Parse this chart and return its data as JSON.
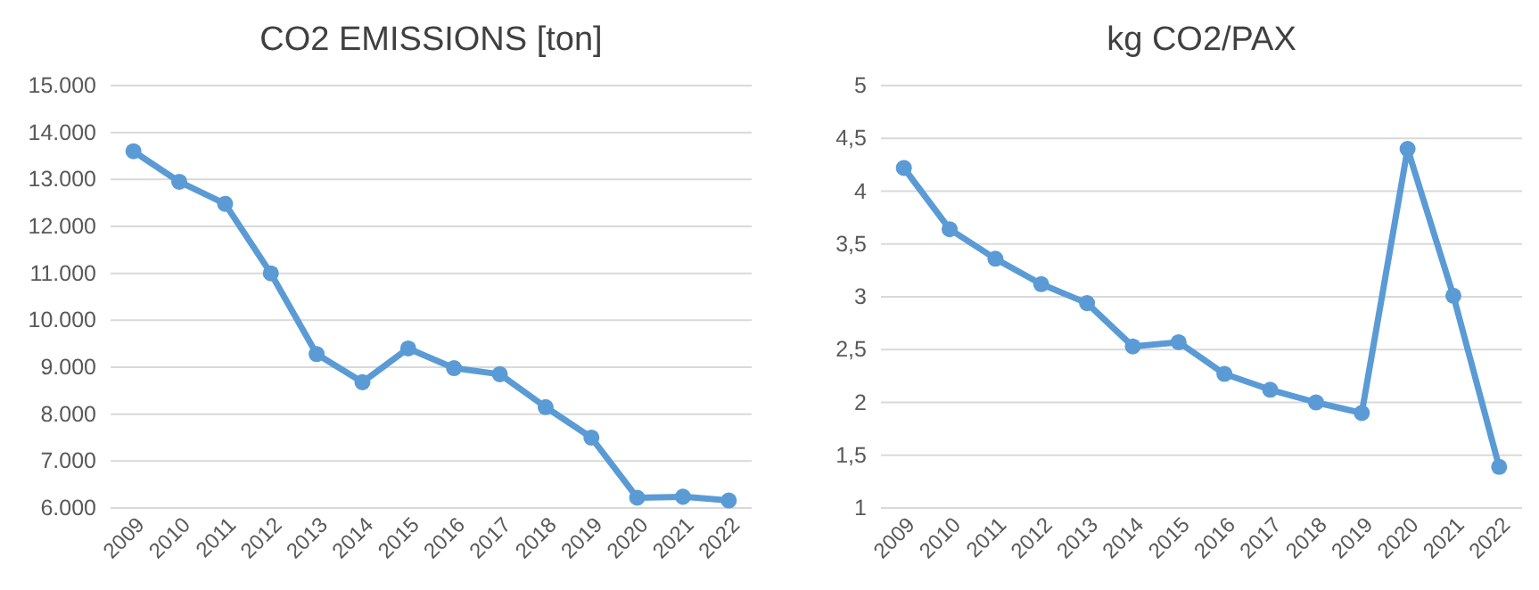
{
  "chart_data": [
    {
      "type": "line",
      "title": "CO2 EMISSIONS [ton]",
      "categories": [
        "2009",
        "2010",
        "2011",
        "2012",
        "2013",
        "2014",
        "2015",
        "2016",
        "2017",
        "2018",
        "2019",
        "2020",
        "2021",
        "2022"
      ],
      "series": [
        {
          "color": "#5b9bd5",
          "values": [
            13600,
            12950,
            12480,
            11000,
            9280,
            8680,
            9400,
            8980,
            8850,
            8150,
            7500,
            6220,
            6240,
            6160
          ]
        }
      ],
      "ylim": [
        6000,
        15000
      ],
      "yticks": [
        {
          "value": 6000,
          "label": "6.000"
        },
        {
          "value": 7000,
          "label": "7.000"
        },
        {
          "value": 8000,
          "label": "8.000"
        },
        {
          "value": 9000,
          "label": "9.000"
        },
        {
          "value": 10000,
          "label": "10.000"
        },
        {
          "value": 11000,
          "label": "11.000"
        },
        {
          "value": 12000,
          "label": "12.000"
        },
        {
          "value": 13000,
          "label": "13.000"
        },
        {
          "value": 14000,
          "label": "14.000"
        },
        {
          "value": 15000,
          "label": "15.000"
        }
      ],
      "grid": "y",
      "marker": "circle",
      "line_style": "solid"
    },
    {
      "type": "line",
      "title": "kg CO2/PAX",
      "categories": [
        "2009",
        "2010",
        "2011",
        "2012",
        "2013",
        "2014",
        "2015",
        "2016",
        "2017",
        "2018",
        "2019",
        "2020",
        "2021",
        "2022"
      ],
      "series": [
        {
          "color": "#5b9bd5",
          "values": [
            4.22,
            3.64,
            3.36,
            3.12,
            2.94,
            2.53,
            2.57,
            2.27,
            2.12,
            2.0,
            1.9,
            4.4,
            3.01,
            1.39
          ]
        }
      ],
      "ylim": [
        1,
        5
      ],
      "yticks": [
        1,
        {
          "value": 1.5,
          "label": "1,5"
        },
        2,
        {
          "value": 2.5,
          "label": "2,5"
        },
        3,
        {
          "value": 3.5,
          "label": "3,5"
        },
        4,
        {
          "value": 4.5,
          "label": "4,5"
        },
        5
      ],
      "grid": "y",
      "marker": "circle",
      "line_style": "solid"
    }
  ]
}
